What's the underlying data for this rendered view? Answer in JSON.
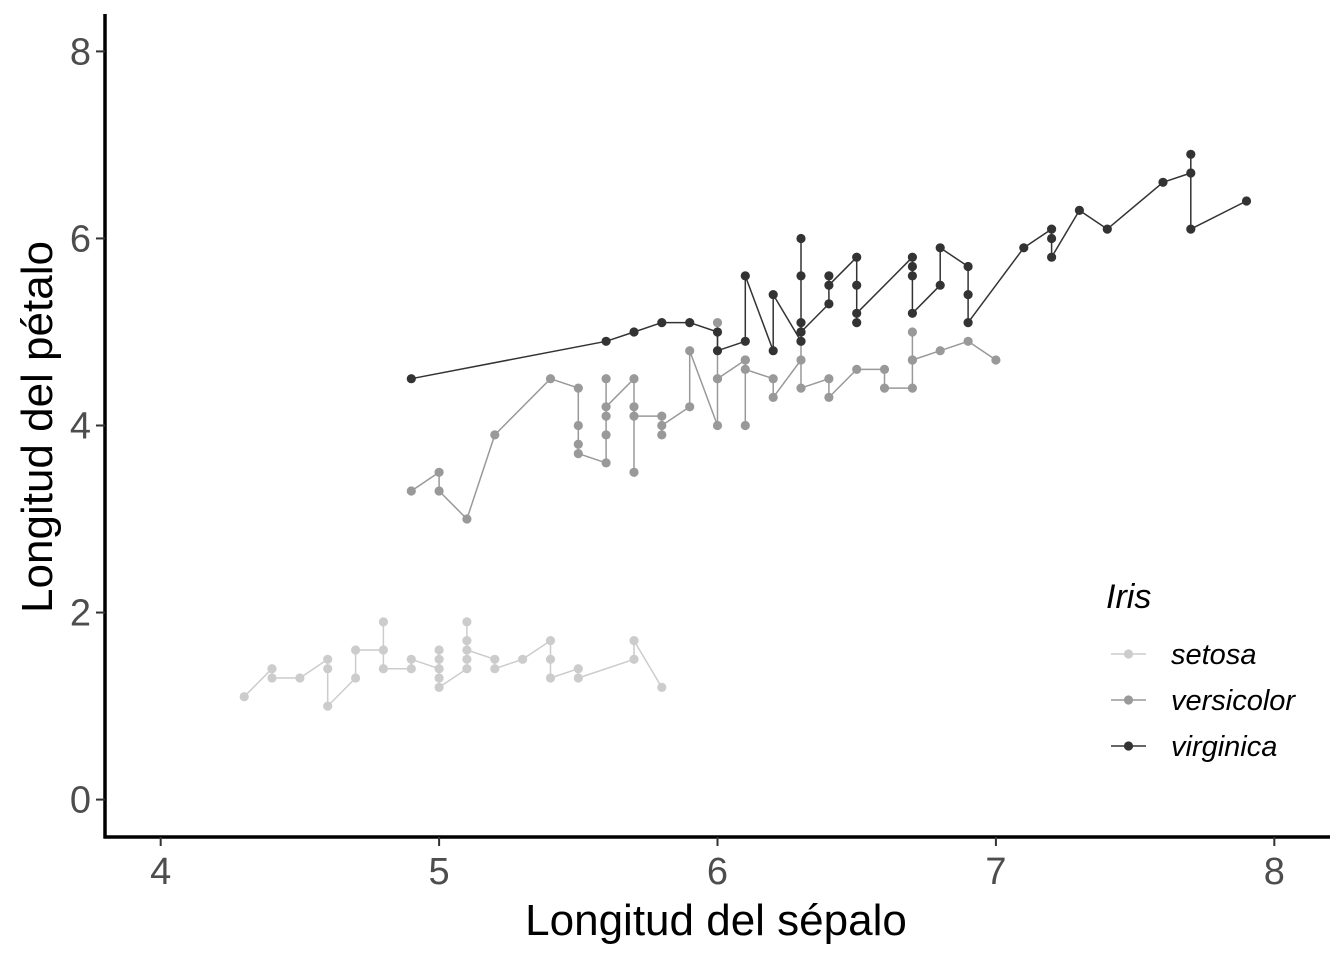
{
  "chart_data": {
    "type": "line",
    "title": "",
    "xlabel": "Longitud del sépalo",
    "ylabel": "Longitud del pétalo",
    "xlim": [
      3.8,
      8.2
    ],
    "ylim": [
      -0.4,
      8.4
    ],
    "xticks": [
      4,
      5,
      6,
      7,
      8
    ],
    "yticks": [
      0,
      2,
      4,
      6,
      8
    ],
    "xtick_labels": [
      "4",
      "5",
      "6",
      "7",
      "8"
    ],
    "ytick_labels": [
      "0",
      "2",
      "4",
      "6",
      "8"
    ],
    "grid": false,
    "legend": {
      "title": "Iris",
      "placement": "bottom-right"
    },
    "series": [
      {
        "name": "setosa",
        "color": "#cccccc",
        "points": [
          [
            4.3,
            1.1
          ],
          [
            4.4,
            1.4
          ],
          [
            4.4,
            1.3
          ],
          [
            4.5,
            1.3
          ],
          [
            4.6,
            1.5
          ],
          [
            4.6,
            1.4
          ],
          [
            4.6,
            1.0
          ],
          [
            4.7,
            1.3
          ],
          [
            4.7,
            1.6
          ],
          [
            4.8,
            1.6
          ],
          [
            4.8,
            1.9
          ],
          [
            4.8,
            1.4
          ],
          [
            4.9,
            1.4
          ],
          [
            4.9,
            1.5
          ],
          [
            5.0,
            1.4
          ],
          [
            5.0,
            1.5
          ],
          [
            5.0,
            1.6
          ],
          [
            5.0,
            1.3
          ],
          [
            5.0,
            1.2
          ],
          [
            5.1,
            1.4
          ],
          [
            5.1,
            1.5
          ],
          [
            5.1,
            1.9
          ],
          [
            5.1,
            1.7
          ],
          [
            5.1,
            1.6
          ],
          [
            5.2,
            1.5
          ],
          [
            5.2,
            1.4
          ],
          [
            5.3,
            1.5
          ],
          [
            5.4,
            1.7
          ],
          [
            5.4,
            1.5
          ],
          [
            5.4,
            1.3
          ],
          [
            5.5,
            1.4
          ],
          [
            5.5,
            1.3
          ],
          [
            5.7,
            1.5
          ],
          [
            5.7,
            1.7
          ],
          [
            5.8,
            1.2
          ]
        ]
      },
      {
        "name": "versicolor",
        "color": "#999999",
        "points": [
          [
            4.9,
            3.3
          ],
          [
            5.0,
            3.5
          ],
          [
            5.0,
            3.3
          ],
          [
            5.1,
            3.0
          ],
          [
            5.2,
            3.9
          ],
          [
            5.4,
            4.5
          ],
          [
            5.5,
            4.4
          ],
          [
            5.5,
            4.0
          ],
          [
            5.5,
            3.8
          ],
          [
            5.5,
            3.7
          ],
          [
            5.6,
            3.6
          ],
          [
            5.6,
            4.5
          ],
          [
            5.6,
            4.1
          ],
          [
            5.6,
            3.9
          ],
          [
            5.6,
            4.2
          ],
          [
            5.7,
            4.5
          ],
          [
            5.7,
            3.5
          ],
          [
            5.7,
            4.2
          ],
          [
            5.7,
            4.1
          ],
          [
            5.8,
            4.1
          ],
          [
            5.8,
            3.9
          ],
          [
            5.8,
            4.0
          ],
          [
            5.9,
            4.2
          ],
          [
            5.9,
            4.8
          ],
          [
            6.0,
            4.0
          ],
          [
            6.0,
            4.5
          ],
          [
            6.0,
            5.1
          ],
          [
            6.0,
            4.5
          ],
          [
            6.1,
            4.7
          ],
          [
            6.1,
            4.0
          ],
          [
            6.1,
            4.7
          ],
          [
            6.1,
            4.6
          ],
          [
            6.2,
            4.5
          ],
          [
            6.2,
            4.3
          ],
          [
            6.3,
            4.7
          ],
          [
            6.3,
            4.9
          ],
          [
            6.3,
            4.4
          ],
          [
            6.4,
            4.5
          ],
          [
            6.4,
            4.3
          ],
          [
            6.5,
            4.6
          ],
          [
            6.6,
            4.6
          ],
          [
            6.6,
            4.4
          ],
          [
            6.7,
            4.4
          ],
          [
            6.7,
            4.7
          ],
          [
            6.7,
            5.0
          ],
          [
            6.7,
            4.7
          ],
          [
            6.8,
            4.8
          ],
          [
            6.9,
            4.9
          ],
          [
            7.0,
            4.7
          ]
        ]
      },
      {
        "name": "virginica",
        "color": "#333333",
        "points": [
          [
            4.9,
            4.5
          ],
          [
            5.6,
            4.9
          ],
          [
            5.7,
            5.0
          ],
          [
            5.8,
            5.1
          ],
          [
            5.9,
            5.1
          ],
          [
            6.0,
            5.0
          ],
          [
            6.0,
            4.8
          ],
          [
            6.1,
            4.9
          ],
          [
            6.1,
            5.6
          ],
          [
            6.2,
            4.8
          ],
          [
            6.2,
            5.4
          ],
          [
            6.3,
            4.9
          ],
          [
            6.3,
            5.0
          ],
          [
            6.3,
            5.1
          ],
          [
            6.3,
            5.6
          ],
          [
            6.3,
            6.0
          ],
          [
            6.3,
            5.0
          ],
          [
            6.4,
            5.3
          ],
          [
            6.4,
            5.6
          ],
          [
            6.4,
            5.5
          ],
          [
            6.5,
            5.8
          ],
          [
            6.5,
            5.5
          ],
          [
            6.5,
            5.1
          ],
          [
            6.5,
            5.2
          ],
          [
            6.7,
            5.8
          ],
          [
            6.7,
            5.7
          ],
          [
            6.7,
            5.6
          ],
          [
            6.7,
            5.2
          ],
          [
            6.8,
            5.5
          ],
          [
            6.8,
            5.9
          ],
          [
            6.9,
            5.7
          ],
          [
            6.9,
            5.4
          ],
          [
            6.9,
            5.1
          ],
          [
            7.1,
            5.9
          ],
          [
            7.2,
            6.1
          ],
          [
            7.2,
            6.0
          ],
          [
            7.2,
            5.8
          ],
          [
            7.3,
            6.3
          ],
          [
            7.4,
            6.1
          ],
          [
            7.6,
            6.6
          ],
          [
            7.7,
            6.7
          ],
          [
            7.7,
            6.9
          ],
          [
            7.7,
            6.1
          ],
          [
            7.9,
            6.4
          ]
        ]
      }
    ]
  }
}
